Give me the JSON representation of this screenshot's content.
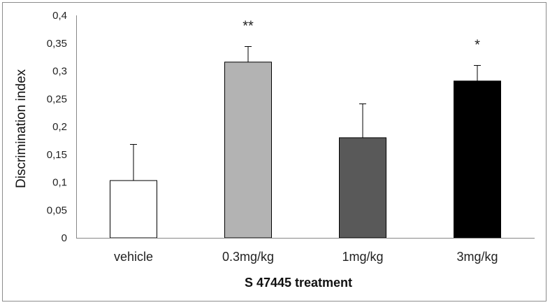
{
  "chart_data": {
    "type": "bar",
    "title": "",
    "xlabel": "S 47445 treatment",
    "ylabel": "Discrimination index",
    "categories": [
      "vehicle",
      "0.3mg/kg",
      "1mg/kg",
      "3mg/kg"
    ],
    "values": [
      0.103,
      0.316,
      0.18,
      0.282
    ],
    "errors": [
      0.065,
      0.028,
      0.061,
      0.028
    ],
    "significance": [
      "",
      "**",
      "",
      "*"
    ],
    "colors": [
      "#ffffff",
      "#b3b3b3",
      "#595959",
      "#000000"
    ],
    "ylim": [
      0,
      0.4
    ],
    "yticks": [
      0,
      0.05,
      0.1,
      0.15,
      0.2,
      0.25,
      0.3,
      0.35,
      0.4
    ],
    "ytick_labels": [
      "0",
      "0,05",
      "0,1",
      "0,15",
      "0,2",
      "0,25",
      "0,3",
      "0,35",
      "0,4"
    ],
    "grid": false,
    "legend": "none"
  }
}
